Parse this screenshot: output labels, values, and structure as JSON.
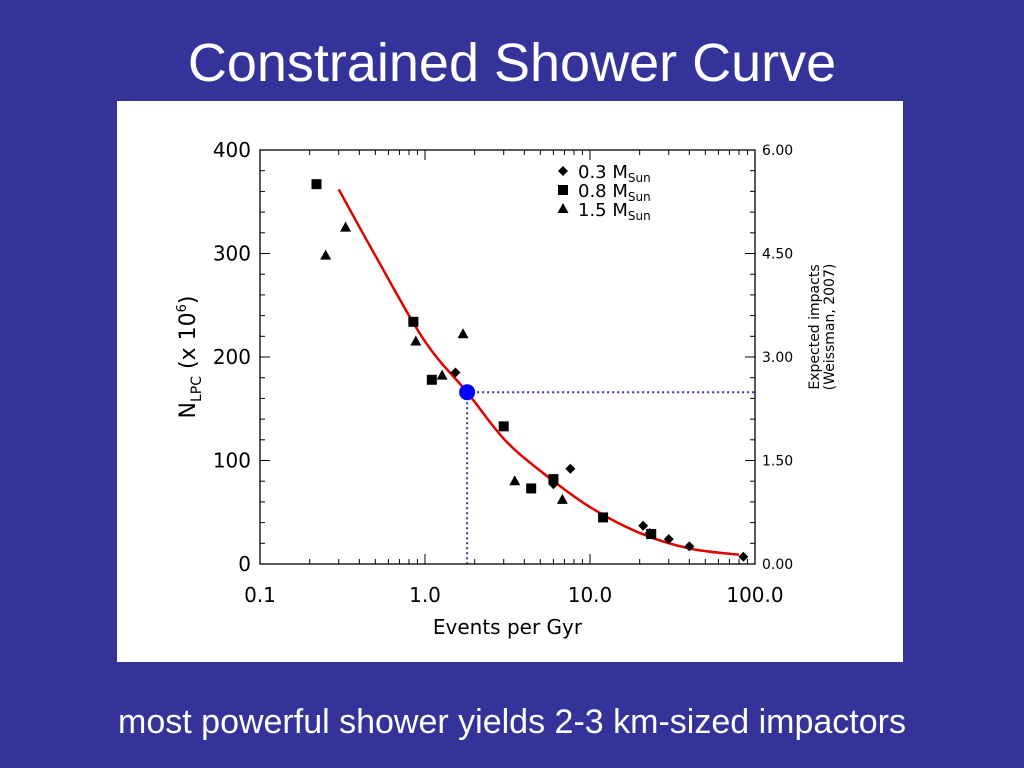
{
  "slide": {
    "title": "Constrained Shower Curve",
    "caption": "most powerful shower yields 2-3 km-sized impactors"
  },
  "colors": {
    "background": "#333399",
    "curve": "#e00000",
    "highlight_point": "#0000ff",
    "guide_line": "#3333aa"
  },
  "chart_data": {
    "type": "scatter",
    "xlabel": "Events per Gyr",
    "ylabel": {
      "main": "N",
      "sub": "LPC",
      "rest": "(x 10",
      "sup": "6",
      "close": ")"
    },
    "y2label": [
      "Expected impacts",
      "(Weissman, 2007)"
    ],
    "x_scale": "log",
    "xlim": [
      0.1,
      100
    ],
    "ylim": [
      0,
      400
    ],
    "y2lim": [
      0,
      6
    ],
    "xticks": [
      0.1,
      1,
      10,
      100
    ],
    "xtick_labels": [
      "0.1",
      "1.0",
      "10.0",
      "100.0"
    ],
    "yticks": [
      0,
      100,
      200,
      300,
      400
    ],
    "ytick_labels": [
      "0",
      "100",
      "200",
      "300",
      "400"
    ],
    "y2ticks": [
      0,
      1.5,
      3,
      4.5,
      6
    ],
    "y2tick_labels": [
      "0.00",
      "1.50",
      "3.00",
      "4.50",
      "6.00"
    ],
    "grid": false,
    "legend_position": "top-right",
    "series": [
      {
        "name": "0.3 M",
        "name_sub": "Sun",
        "marker": "diamond",
        "points": [
          [
            1.53,
            185
          ],
          [
            6.0,
            77
          ],
          [
            7.6,
            92
          ],
          [
            21,
            37
          ],
          [
            23,
            30
          ],
          [
            30,
            24
          ],
          [
            40,
            17
          ],
          [
            85,
            7
          ]
        ]
      },
      {
        "name": "0.8 M",
        "name_sub": "Sun",
        "marker": "square",
        "points": [
          [
            0.22,
            367
          ],
          [
            0.85,
            234
          ],
          [
            1.1,
            178
          ],
          [
            3.0,
            133
          ],
          [
            4.4,
            73
          ],
          [
            6.0,
            82
          ],
          [
            12.0,
            45
          ],
          [
            23.5,
            29
          ]
        ]
      },
      {
        "name": "1.5 M",
        "name_sub": "Sun",
        "marker": "triangle",
        "points": [
          [
            0.25,
            298
          ],
          [
            0.33,
            325
          ],
          [
            0.88,
            215
          ],
          [
            1.27,
            182
          ],
          [
            1.7,
            222
          ],
          [
            3.5,
            80
          ],
          [
            6.8,
            62
          ]
        ]
      }
    ],
    "fit_curve": [
      [
        0.3,
        362
      ],
      [
        0.5,
        298
      ],
      [
        1.0,
        215
      ],
      [
        1.8,
        166
      ],
      [
        3.0,
        121
      ],
      [
        5.0,
        90
      ],
      [
        10.0,
        55
      ],
      [
        20.0,
        30
      ],
      [
        40.0,
        15
      ],
      [
        80.0,
        9
      ]
    ],
    "highlight": {
      "x": 1.8,
      "y": 166
    }
  }
}
